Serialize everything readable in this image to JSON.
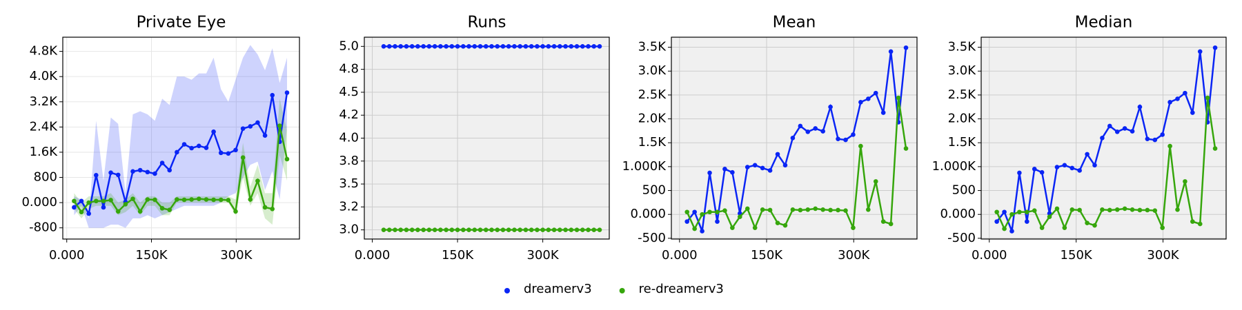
{
  "chart_data": [
    {
      "type": "line",
      "title": "Private Eye",
      "background": "#ffffff",
      "grid": true,
      "x": [
        13000,
        26000,
        39000,
        52000,
        65000,
        78000,
        91000,
        104000,
        117000,
        130000,
        143000,
        156000,
        169000,
        182000,
        195000,
        208000,
        221000,
        234000,
        247000,
        260000,
        273000,
        286000,
        299000,
        312000,
        325000,
        338000,
        351000,
        364000,
        377000,
        390000
      ],
      "xlim": [
        -7000,
        412000
      ],
      "xticks": [
        {
          "value": 0,
          "label": "0.000"
        },
        {
          "value": 150000,
          "label": "150K"
        },
        {
          "value": 300000,
          "label": "300K"
        }
      ],
      "ylim": [
        -1156,
        5250
      ],
      "yticks": [
        -800,
        {
          "value": 0,
          "label": "0.000"
        },
        800,
        {
          "value": 1600,
          "label": "1.6K"
        },
        {
          "value": 2400,
          "label": "2.4K"
        },
        {
          "value": 3200,
          "label": "3.2K"
        },
        {
          "value": 4000,
          "label": "4.0K"
        },
        {
          "value": 4800,
          "label": "4.8K"
        }
      ],
      "series": [
        {
          "name": "dreamerv3",
          "color": "#0a25f5",
          "values": [
            -150,
            50,
            -350,
            870,
            -150,
            950,
            880,
            20,
            990,
            1030,
            970,
            920,
            1260,
            1030,
            1600,
            1850,
            1730,
            1800,
            1740,
            2250,
            1580,
            1560,
            1670,
            2350,
            2420,
            2540,
            2130,
            3410,
            1930,
            3490
          ],
          "upper": [
            200,
            100,
            -500,
            2600,
            700,
            2700,
            2500,
            300,
            2800,
            2900,
            2800,
            2600,
            3300,
            3100,
            4000,
            4000,
            3900,
            4100,
            4100,
            4600,
            3600,
            3200,
            3900,
            4600,
            5000,
            4700,
            4200,
            4900,
            3800,
            4600
          ],
          "lower": [
            -400,
            -100,
            -800,
            -800,
            -800,
            -700,
            -700,
            -800,
            -500,
            -500,
            -400,
            -500,
            -400,
            -300,
            -200,
            -100,
            -100,
            -100,
            -100,
            -100,
            0,
            200,
            300,
            800,
            1200,
            1300,
            400,
            1000,
            100,
            2400
          ]
        },
        {
          "name": "re-dreamerv3",
          "color": "#36a60c",
          "values": [
            50,
            -300,
            0,
            50,
            50,
            80,
            -280,
            -50,
            120,
            -280,
            100,
            90,
            -180,
            -230,
            100,
            90,
            100,
            120,
            100,
            90,
            90,
            80,
            -280,
            1430,
            100,
            690,
            -150,
            -200,
            2440,
            1380
          ],
          "upper": [
            300,
            0,
            200,
            200,
            200,
            300,
            0,
            100,
            300,
            0,
            200,
            200,
            0,
            0,
            200,
            200,
            200,
            200,
            200,
            200,
            200,
            200,
            100,
            1900,
            500,
            1200,
            300,
            300,
            3300,
            2300
          ],
          "lower": [
            -200,
            -500,
            -200,
            -100,
            -100,
            -100,
            -400,
            -300,
            -100,
            -400,
            -100,
            -100,
            -400,
            -400,
            0,
            0,
            0,
            0,
            0,
            0,
            0,
            0,
            -400,
            800,
            -100,
            300,
            -500,
            -700,
            1500,
            700
          ]
        }
      ]
    },
    {
      "type": "line",
      "title": "Runs",
      "background": "#f0f0f0",
      "grid": true,
      "x": [
        20000,
        30000,
        40000,
        50000,
        60000,
        70000,
        80000,
        90000,
        100000,
        110000,
        120000,
        130000,
        140000,
        150000,
        160000,
        170000,
        180000,
        190000,
        200000,
        210000,
        220000,
        230000,
        240000,
        250000,
        260000,
        270000,
        280000,
        290000,
        300000,
        310000,
        320000,
        330000,
        340000,
        350000,
        360000,
        370000,
        380000,
        390000,
        400000
      ],
      "xlim": [
        -14000,
        417000
      ],
      "xticks": [
        {
          "value": 0,
          "label": "0.000"
        },
        {
          "value": 150000,
          "label": "150K"
        },
        {
          "value": 300000,
          "label": "300K"
        }
      ],
      "ylim": [
        2.9,
        5.1
      ],
      "yticks": [
        {
          "value": 3,
          "label": "3.0"
        },
        {
          "value": 3.25,
          "label": "3.2"
        },
        3.5,
        {
          "value": 3.75,
          "label": "3.8"
        },
        {
          "value": 4,
          "label": "4.0"
        },
        {
          "value": 4.25,
          "label": "4.2"
        },
        4.5,
        {
          "value": 4.75,
          "label": "4.8"
        },
        {
          "value": 5,
          "label": "5.0"
        }
      ],
      "series": [
        {
          "name": "dreamerv3",
          "color": "#0a25f5",
          "values": [
            5,
            5,
            5,
            5,
            5,
            5,
            5,
            5,
            5,
            5,
            5,
            5,
            5,
            5,
            5,
            5,
            5,
            5,
            5,
            5,
            5,
            5,
            5,
            5,
            5,
            5,
            5,
            5,
            5,
            5,
            5,
            5,
            5,
            5,
            5,
            5,
            5,
            5,
            5
          ]
        },
        {
          "name": "re-dreamerv3",
          "color": "#36a60c",
          "values": [
            3,
            3,
            3,
            3,
            3,
            3,
            3,
            3,
            3,
            3,
            3,
            3,
            3,
            3,
            3,
            3,
            3,
            3,
            3,
            3,
            3,
            3,
            3,
            3,
            3,
            3,
            3,
            3,
            3,
            3,
            3,
            3,
            3,
            3,
            3,
            3,
            3,
            3,
            3
          ]
        }
      ]
    },
    {
      "type": "line",
      "title": "Mean",
      "background": "#f0f0f0",
      "grid": true,
      "x": [
        13000,
        26000,
        39000,
        52000,
        65000,
        78000,
        91000,
        104000,
        117000,
        130000,
        143000,
        156000,
        169000,
        182000,
        195000,
        208000,
        221000,
        234000,
        247000,
        260000,
        273000,
        286000,
        299000,
        312000,
        325000,
        338000,
        351000,
        364000,
        377000,
        390000
      ],
      "xlim": [
        -14000,
        409000
      ],
      "xticks": [
        {
          "value": 0,
          "label": "0.000"
        },
        {
          "value": 150000,
          "label": "150K"
        },
        {
          "value": 300000,
          "label": "300K"
        }
      ],
      "ylim": [
        -516,
        3710
      ],
      "yticks": [
        -500,
        {
          "value": 0,
          "label": "0.000"
        },
        500,
        {
          "value": 1000,
          "label": "1.000K"
        },
        {
          "value": 1500,
          "label": "1.5K"
        },
        {
          "value": 2000,
          "label": "2.0K"
        },
        {
          "value": 2500,
          "label": "2.5K"
        },
        {
          "value": 3000,
          "label": "3.0K"
        },
        {
          "value": 3500,
          "label": "3.5K"
        }
      ],
      "series": [
        {
          "name": "dreamerv3",
          "color": "#0a25f5",
          "values": [
            -150,
            50,
            -350,
            870,
            -150,
            950,
            880,
            20,
            990,
            1030,
            970,
            920,
            1260,
            1030,
            1600,
            1850,
            1730,
            1800,
            1740,
            2250,
            1580,
            1560,
            1670,
            2350,
            2420,
            2540,
            2130,
            3410,
            1930,
            3490
          ]
        },
        {
          "name": "re-dreamerv3",
          "color": "#36a60c",
          "values": [
            50,
            -300,
            0,
            50,
            50,
            80,
            -280,
            -50,
            120,
            -280,
            100,
            90,
            -180,
            -230,
            100,
            90,
            100,
            120,
            100,
            90,
            90,
            80,
            -280,
            1430,
            100,
            690,
            -150,
            -200,
            2440,
            1380
          ]
        }
      ]
    },
    {
      "type": "line",
      "title": "Median",
      "background": "#f0f0f0",
      "grid": true,
      "x": [
        13000,
        26000,
        39000,
        52000,
        65000,
        78000,
        91000,
        104000,
        117000,
        130000,
        143000,
        156000,
        169000,
        182000,
        195000,
        208000,
        221000,
        234000,
        247000,
        260000,
        273000,
        286000,
        299000,
        312000,
        325000,
        338000,
        351000,
        364000,
        377000,
        390000
      ],
      "xlim": [
        -14000,
        409000
      ],
      "xticks": [
        {
          "value": 0,
          "label": "0.000"
        },
        {
          "value": 150000,
          "label": "150K"
        },
        {
          "value": 300000,
          "label": "300K"
        }
      ],
      "ylim": [
        -516,
        3710
      ],
      "yticks": [
        -500,
        {
          "value": 0,
          "label": "0.000"
        },
        500,
        {
          "value": 1000,
          "label": "1.000K"
        },
        {
          "value": 1500,
          "label": "1.5K"
        },
        {
          "value": 2000,
          "label": "2.0K"
        },
        {
          "value": 2500,
          "label": "2.5K"
        },
        {
          "value": 3000,
          "label": "3.0K"
        },
        {
          "value": 3500,
          "label": "3.5K"
        }
      ],
      "series": [
        {
          "name": "dreamerv3",
          "color": "#0a25f5",
          "values": [
            -150,
            50,
            -350,
            870,
            -150,
            950,
            880,
            20,
            990,
            1030,
            970,
            920,
            1260,
            1030,
            1600,
            1850,
            1730,
            1800,
            1740,
            2250,
            1580,
            1560,
            1670,
            2350,
            2420,
            2540,
            2130,
            3410,
            1930,
            3490
          ]
        },
        {
          "name": "re-dreamerv3",
          "color": "#36a60c",
          "values": [
            50,
            -300,
            0,
            50,
            50,
            80,
            -280,
            -50,
            120,
            -280,
            100,
            90,
            -180,
            -230,
            100,
            90,
            100,
            120,
            100,
            90,
            90,
            80,
            -280,
            1430,
            100,
            690,
            -150,
            -200,
            2440,
            1380
          ]
        }
      ]
    }
  ]
}
